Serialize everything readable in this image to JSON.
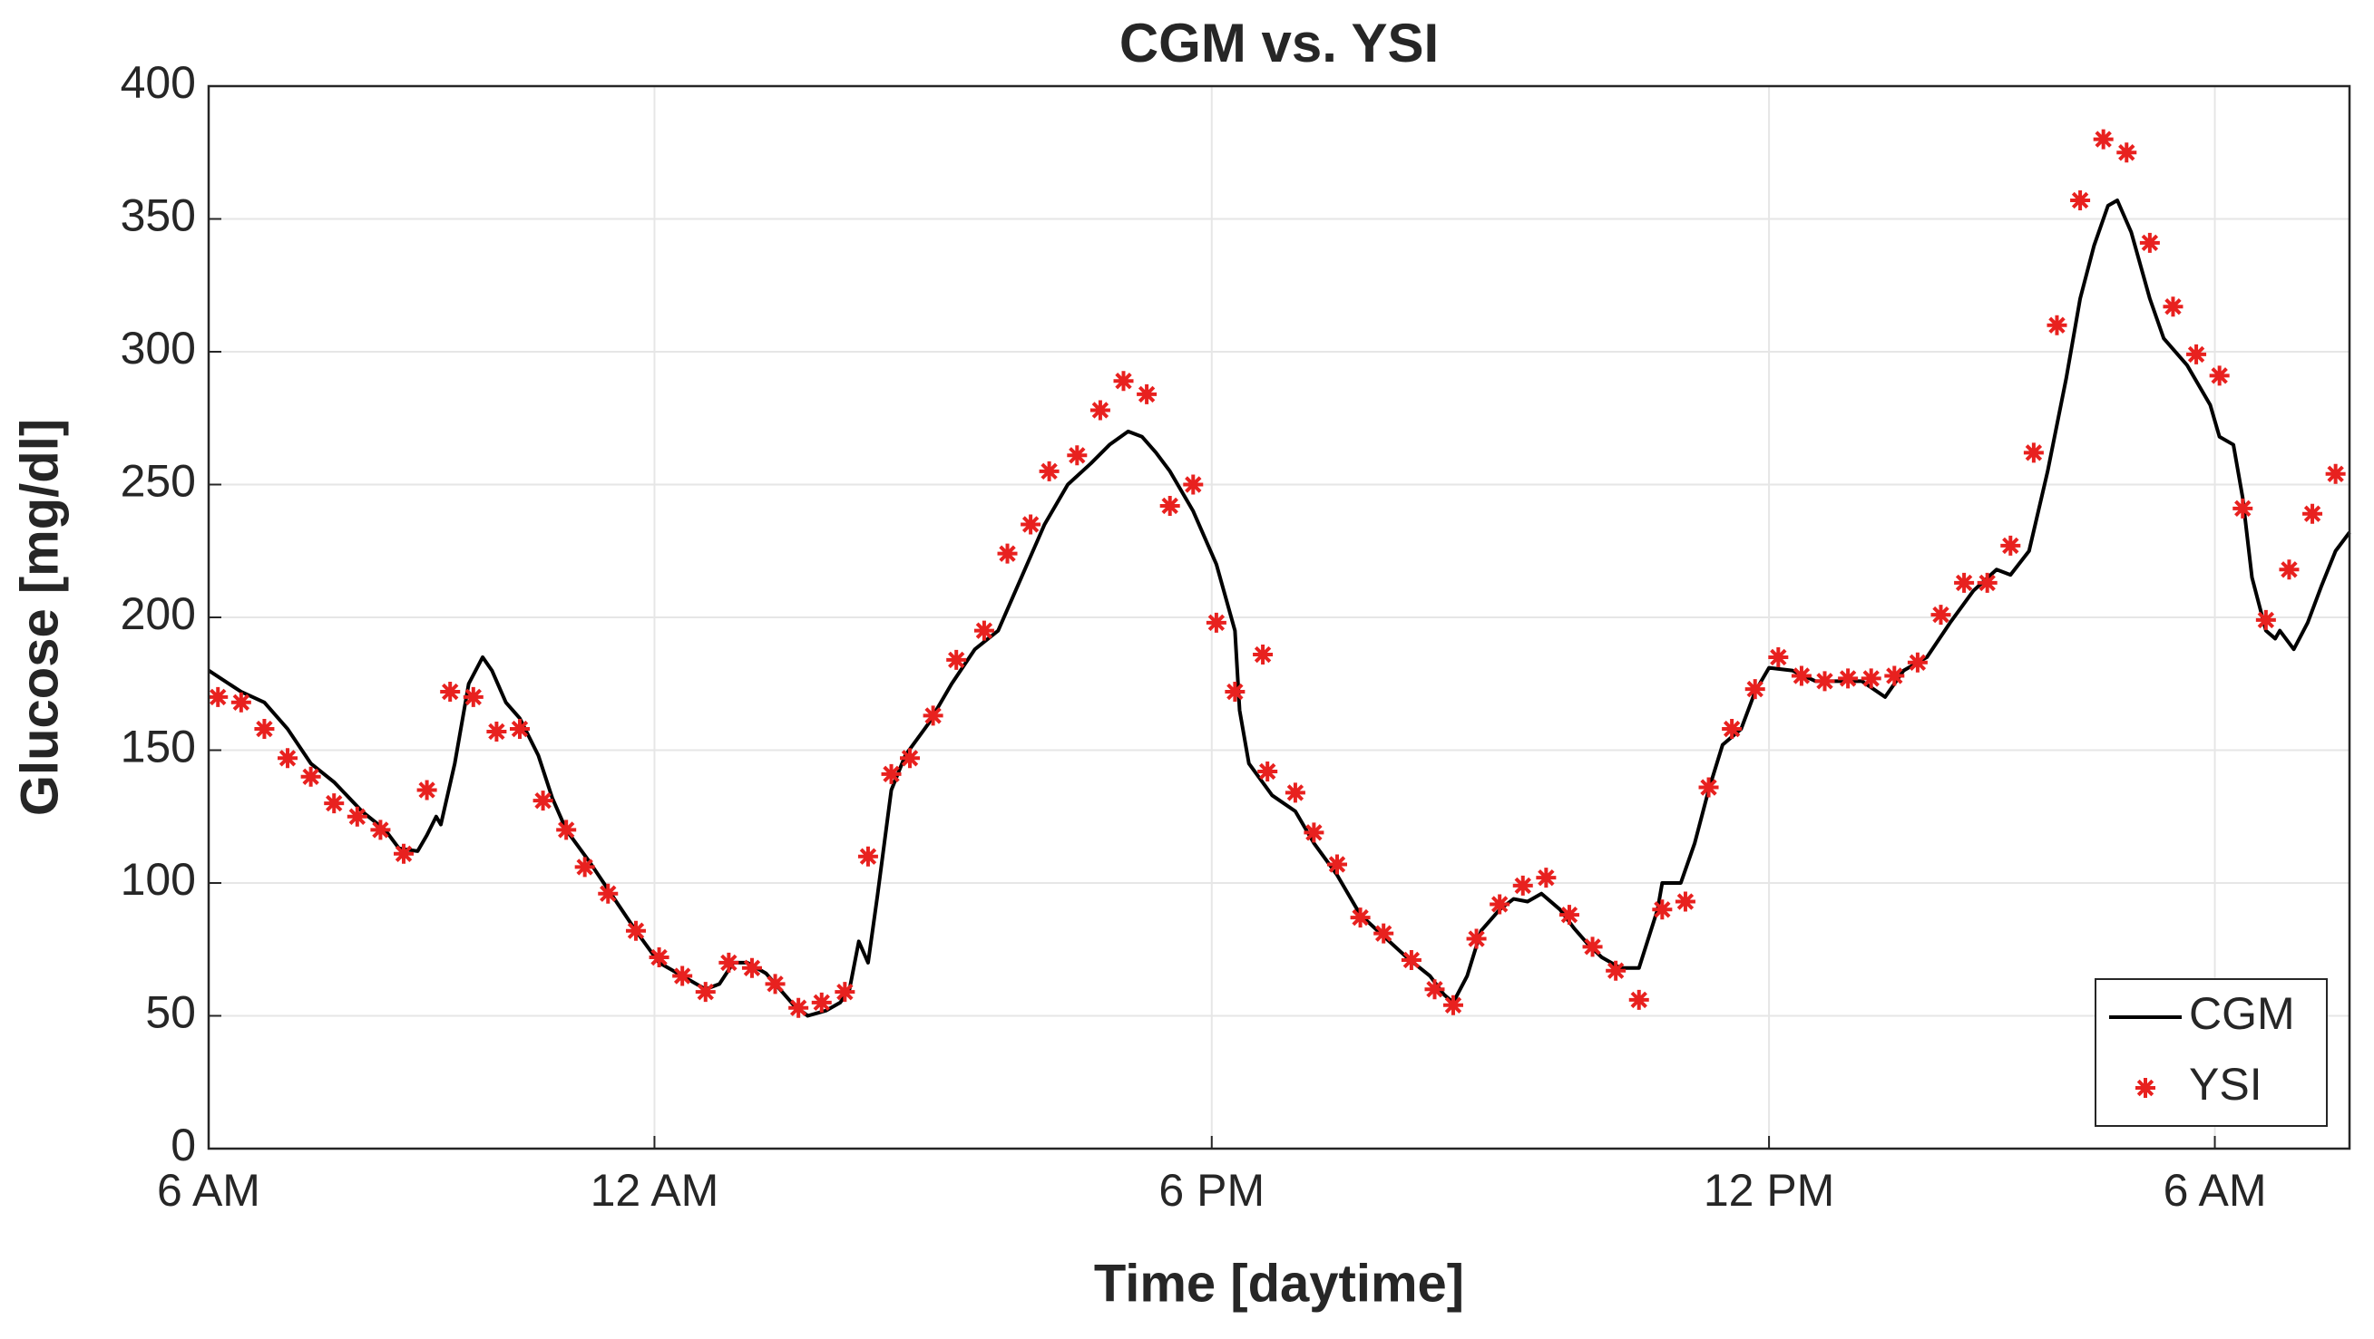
{
  "chart_data": {
    "type": "line",
    "title": "CGM vs. YSI",
    "xlabel": "Time [daytime]",
    "ylabel": "Glucose [mg/dl]",
    "xlim": [
      0,
      46.1
    ],
    "xticks": [
      {
        "value": 0,
        "label": "6 AM"
      },
      {
        "value": 9.6,
        "label": "12 AM"
      },
      {
        "value": 21.6,
        "label": "6 PM"
      },
      {
        "value": 33.6,
        "label": "12 PM"
      },
      {
        "value": 43.2,
        "label": "6 AM"
      }
    ],
    "ylim": [
      0,
      400
    ],
    "yticks": [
      0,
      50,
      100,
      150,
      200,
      250,
      300,
      350,
      400
    ],
    "grid": true,
    "legend": "lower right",
    "series": [
      {
        "name": "CGM",
        "type": "line",
        "color": "#000000",
        "x": [
          0,
          0.7,
          1.2,
          1.7,
          2.2,
          2.7,
          3.3,
          3.8,
          4.1,
          4.5,
          4.7,
          4.9,
          5.0,
          5.3,
          5.6,
          5.9,
          6.1,
          6.4,
          6.7,
          7.1,
          7.4,
          7.7,
          8.2,
          8.7,
          9.2,
          9.7,
          10.2,
          10.7,
          11.0,
          11.3,
          11.6,
          12.0,
          12.3,
          12.6,
          12.9,
          13.3,
          13.6,
          13.8,
          14.0,
          14.2,
          14.4,
          14.7,
          15.0,
          15.5,
          16.0,
          16.5,
          17.0,
          17.5,
          18.0,
          18.5,
          19.0,
          19.4,
          19.8,
          20.1,
          20.4,
          20.7,
          21.2,
          21.7,
          22.1,
          22.2,
          22.4,
          22.9,
          23.4,
          23.8,
          24.3,
          24.8,
          25.3,
          25.8,
          26.3,
          26.6,
          26.8,
          27.1,
          27.4,
          27.8,
          28.1,
          28.4,
          28.7,
          29.1,
          29.4,
          29.7,
          30.0,
          30.4,
          30.8,
          31.2,
          31.3,
          31.7,
          32.0,
          32.3,
          32.6,
          33.0,
          33.3,
          33.6,
          34.1,
          34.6,
          35.1,
          35.6,
          36.1,
          36.5,
          37.0,
          37.5,
          38.0,
          38.5,
          38.8,
          39.2,
          39.6,
          40.0,
          40.3,
          40.6,
          40.9,
          41.1,
          41.4,
          41.8,
          42.1,
          42.6,
          43.1,
          43.3,
          43.6,
          43.8,
          44.0,
          44.3,
          44.5,
          44.6,
          44.9,
          45.2,
          45.5,
          45.8,
          46.1
        ],
        "values": [
          180,
          172,
          168,
          158,
          145,
          138,
          127,
          120,
          113,
          112,
          118,
          125,
          122,
          145,
          175,
          185,
          180,
          168,
          162,
          148,
          132,
          120,
          108,
          95,
          82,
          70,
          65,
          60,
          62,
          70,
          70,
          66,
          60,
          54,
          50,
          52,
          55,
          60,
          78,
          70,
          95,
          135,
          148,
          160,
          175,
          188,
          195,
          215,
          235,
          250,
          258,
          265,
          270,
          268,
          262,
          255,
          240,
          220,
          195,
          165,
          145,
          133,
          127,
          115,
          103,
          88,
          80,
          72,
          65,
          58,
          55,
          65,
          82,
          90,
          94,
          93,
          96,
          90,
          83,
          77,
          72,
          68,
          68,
          90,
          100,
          100,
          115,
          135,
          152,
          158,
          172,
          181,
          180,
          176,
          176,
          176,
          170,
          180,
          185,
          198,
          210,
          218,
          216,
          225,
          255,
          290,
          320,
          340,
          355,
          357,
          345,
          320,
          305,
          295,
          280,
          268,
          265,
          245,
          215,
          195,
          192,
          195,
          188,
          198,
          212,
          225,
          232
        ]
      },
      {
        "name": "YSI",
        "type": "scatter",
        "color": "#e8211f",
        "x": [
          0.2,
          0.7,
          1.2,
          1.7,
          2.2,
          2.7,
          3.2,
          3.7,
          4.2,
          4.7,
          5.2,
          5.7,
          6.2,
          6.7,
          7.2,
          7.7,
          8.1,
          8.6,
          9.2,
          9.7,
          10.2,
          10.7,
          11.2,
          11.7,
          12.2,
          12.7,
          13.2,
          13.7,
          14.2,
          14.7,
          15.1,
          15.6,
          16.1,
          16.7,
          17.2,
          17.7,
          18.1,
          18.7,
          19.2,
          19.7,
          20.2,
          20.7,
          21.2,
          21.7,
          22.1,
          22.7,
          22.8,
          23.4,
          23.8,
          24.3,
          24.8,
          25.3,
          25.9,
          26.4,
          26.8,
          27.3,
          27.8,
          28.3,
          28.8,
          29.3,
          29.8,
          30.3,
          30.8,
          31.3,
          31.8,
          32.3,
          32.8,
          33.3,
          33.8,
          34.3,
          34.8,
          35.3,
          35.8,
          36.3,
          36.8,
          37.3,
          37.8,
          38.3,
          38.8,
          39.3,
          39.8,
          40.3,
          40.8,
          41.3,
          41.8,
          42.3,
          42.8,
          43.3,
          43.8,
          44.3,
          44.8,
          45.3,
          45.8
        ],
        "values": [
          170,
          168,
          158,
          147,
          140,
          130,
          125,
          120,
          111,
          135,
          172,
          170,
          157,
          158,
          131,
          120,
          106,
          96,
          82,
          72,
          65,
          59,
          70,
          68,
          62,
          53,
          55,
          59,
          110,
          141,
          147,
          163,
          184,
          195,
          224,
          235,
          255,
          261,
          278,
          289,
          284,
          242,
          250,
          198,
          172,
          186,
          142,
          134,
          119,
          107,
          87,
          81,
          71,
          60,
          54,
          79,
          92,
          99,
          102,
          88,
          76,
          67,
          56,
          90,
          93,
          136,
          158,
          173,
          185,
          178,
          176,
          177,
          177,
          178,
          183,
          201,
          213,
          213,
          227,
          262,
          310,
          357,
          380,
          375,
          341,
          317,
          299,
          291,
          241,
          199,
          218,
          239,
          254
        ]
      }
    ]
  }
}
